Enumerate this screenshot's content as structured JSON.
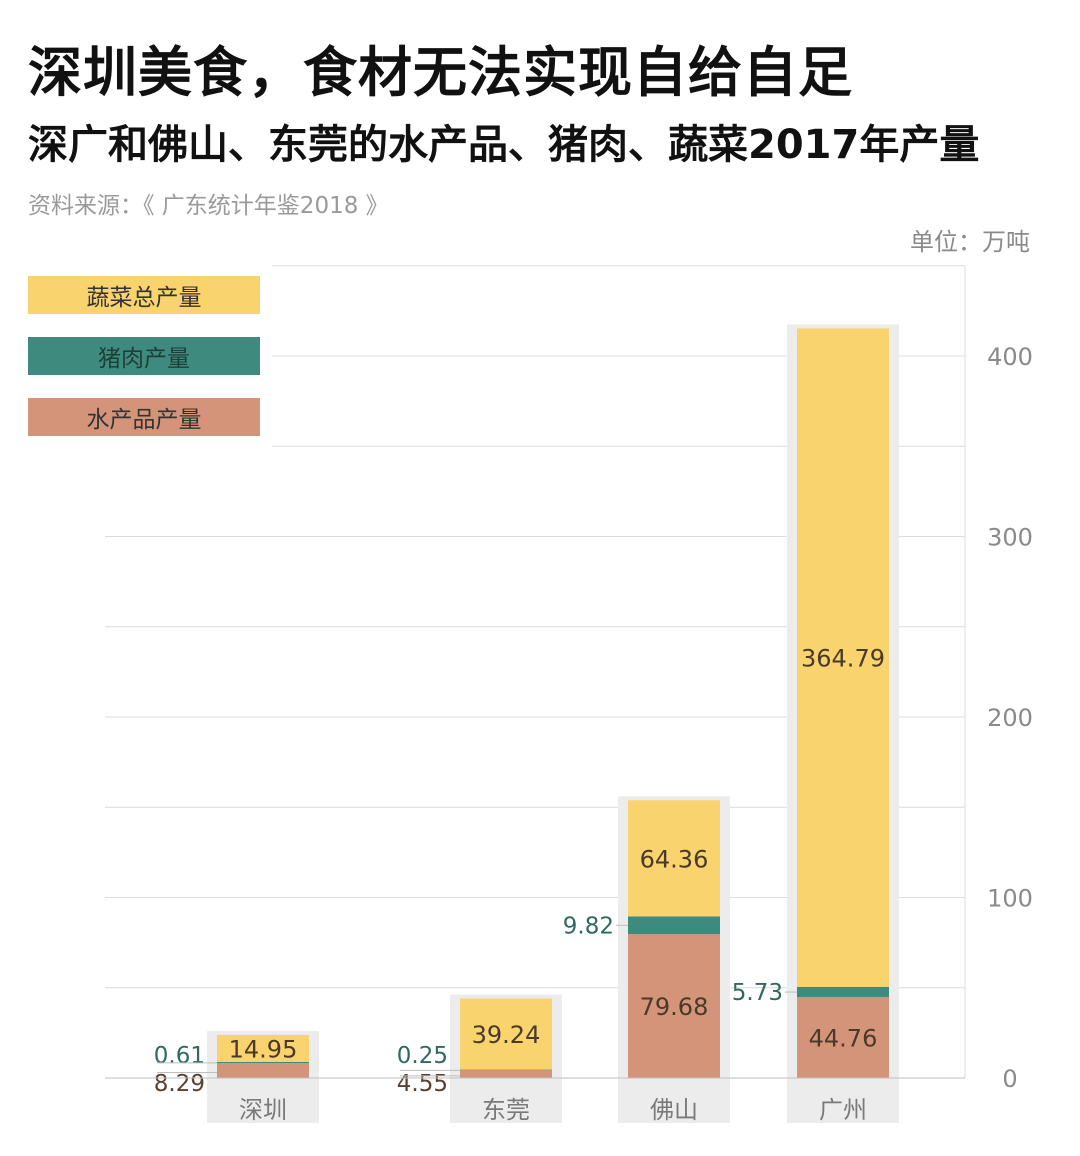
{
  "header": {
    "title": "深圳美食，食材无法实现自给自足",
    "subtitle": "深广和佛山、东莞的水产品、猪肉、蔬菜2017年产量",
    "source": "资料来源：《 广东统计年鉴2018 》",
    "unit": "单位：万吨"
  },
  "legend": [
    {
      "label": "蔬菜总产量",
      "color": "#f8d36e"
    },
    {
      "label": "猪肉产量",
      "color": "#3e8a7e"
    },
    {
      "label": "水产品产量",
      "color": "#d4947a"
    }
  ],
  "chart_data": {
    "type": "bar",
    "stacked": true,
    "title": "深广和佛山、东莞的水产品、猪肉、蔬菜2017年产量",
    "ylabel": "单位：万吨",
    "ylim": [
      0,
      460
    ],
    "yticks": [
      0,
      100,
      200,
      300,
      400
    ],
    "categories": [
      "深圳",
      "东莞",
      "佛山",
      "广州"
    ],
    "series": [
      {
        "name": "水产品产量",
        "color": "#d4947a",
        "values": [
          8.29,
          4.55,
          79.68,
          44.76
        ]
      },
      {
        "name": "猪肉产量",
        "color": "#3e8a7e",
        "values": [
          0.61,
          0.25,
          9.82,
          5.73
        ]
      },
      {
        "name": "蔬菜总产量",
        "color": "#f8d36e",
        "values": [
          14.95,
          39.24,
          64.36,
          364.79
        ]
      }
    ],
    "data_labels": {
      "aquatic": [
        "8.29",
        "4.55",
        "79.68",
        "44.76"
      ],
      "pork": [
        "0.61",
        "0.25",
        "9.82",
        "5.73"
      ],
      "vegetable": [
        "14.95",
        "39.24",
        "64.36",
        "364.79"
      ]
    },
    "grid": true,
    "legend_position": "top-left",
    "colors": {
      "panel": "#ececec",
      "grid": "#dcdcdc"
    }
  }
}
